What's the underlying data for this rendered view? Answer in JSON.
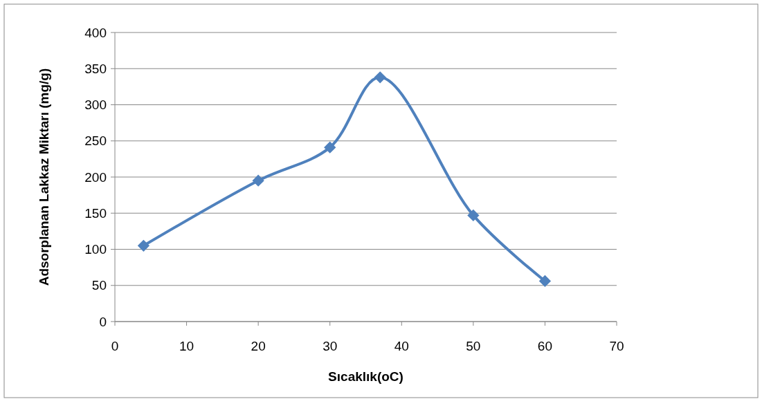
{
  "chart_data": {
    "type": "line",
    "xlabel": "Sıcaklık(oC)",
    "ylabel": "Adsorplanan Lakkaz Miktarı (mg/g)",
    "x": [
      4,
      20,
      30,
      37,
      50,
      60
    ],
    "series": [
      {
        "color": "#4f81bd",
        "values": [
          105,
          195,
          241,
          338,
          147,
          56
        ]
      }
    ],
    "xlim": [
      0,
      70
    ],
    "xticks": [
      0,
      10,
      20,
      30,
      40,
      50,
      60,
      70
    ],
    "ylim": [
      0,
      400
    ],
    "yticks": [
      0,
      50,
      100,
      150,
      200,
      250,
      300,
      350,
      400
    ],
    "grid": "y",
    "marker": "diamond",
    "line_style": "solid"
  }
}
